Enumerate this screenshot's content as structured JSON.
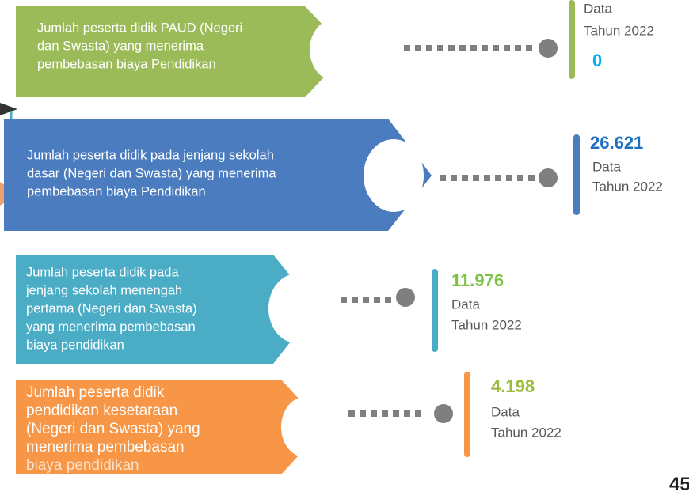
{
  "items": [
    {
      "lines": [
        "Jumlah peserta didik PAUD (Negeri",
        "dan Swasta) yang menerima",
        "pembebasan biaya Pendidikan"
      ],
      "value": "0",
      "data_label": "Data",
      "year_label": "Tahun 2022"
    },
    {
      "lines": [
        "Jumlah peserta didik pada jenjang sekolah",
        "dasar (Negeri dan Swasta) yang menerima",
        "pembebasan biaya Pendidikan"
      ],
      "value": "26.621",
      "data_label": "Data",
      "year_label": "Tahun 2022"
    },
    {
      "lines": [
        "Jumlah peserta didik pada",
        "jenjang sekolah menengah",
        "pertama (Negeri dan Swasta)",
        "yang menerima pembebasan",
        "biaya pendidikan"
      ],
      "value": "11.976",
      "data_label": "Data",
      "year_label": "Tahun 2022"
    },
    {
      "lines": [
        "Jumlah peserta didik",
        "pendidikan kesetaraan",
        "(Negeri dan Swasta) yang",
        "menerima pembebasan",
        "biaya pendidikan"
      ],
      "value": "4.198",
      "data_label": "Data",
      "year_label": "Tahun 2022"
    }
  ],
  "page_number": "45"
}
